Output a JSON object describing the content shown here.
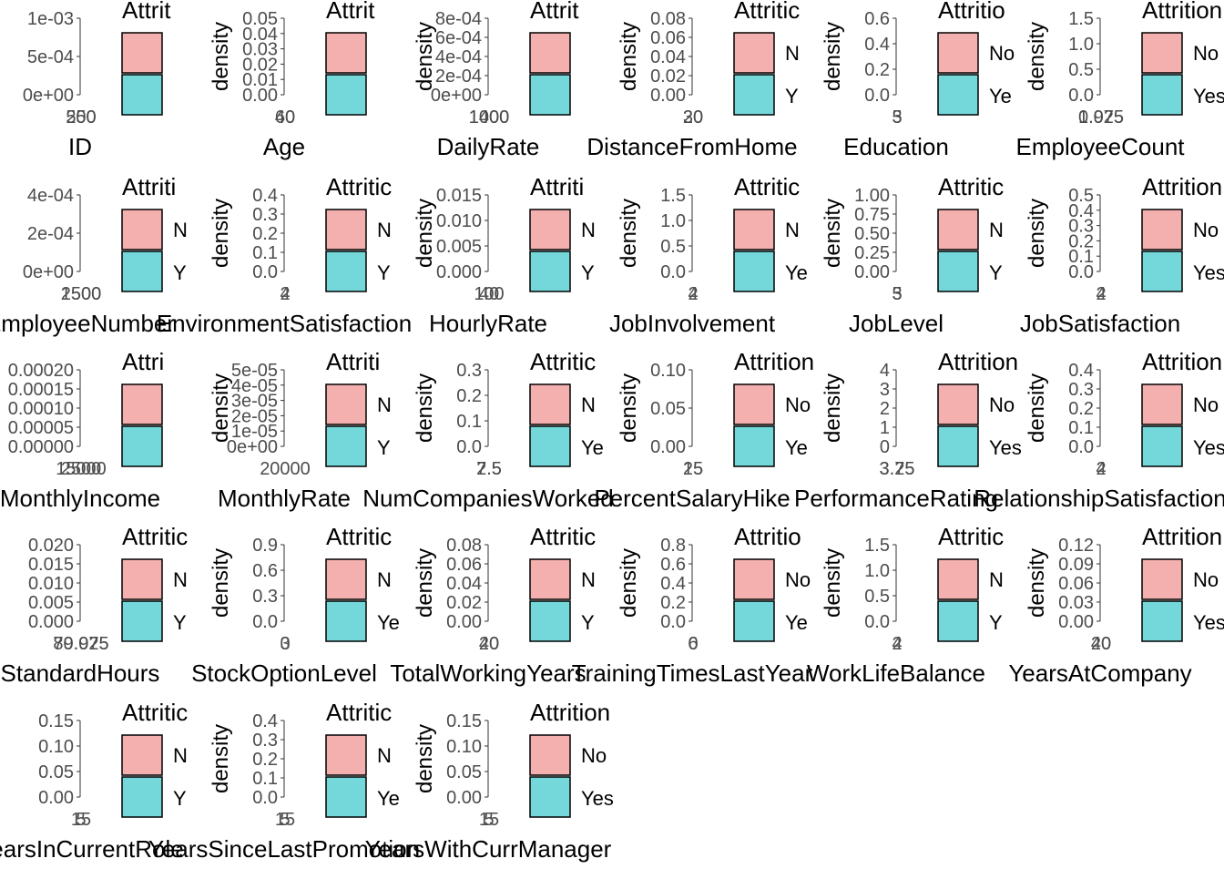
{
  "chart_data": {
    "type": "area",
    "legend": {
      "title": "Attrition",
      "entries": [
        "No",
        "Yes"
      ],
      "colors": [
        "#F4B0AF",
        "#74D8DB"
      ],
      "placement": "right-of-each-panel"
    },
    "ylabel": "density",
    "grid": false,
    "panels": [
      {
        "title": "ID",
        "show_ylabel": false,
        "y_ticks": [
          "1e-03",
          "5e-04",
          "0e+00"
        ],
        "x_tick": "500",
        "x_tick_over": "250",
        "legend_no": "",
        "legend_yes": "",
        "legend_title": "Attrit"
      },
      {
        "title": "Age",
        "show_ylabel": true,
        "y_ticks": [
          "0.05",
          "0.04",
          "0.03",
          "0.02",
          "0.01",
          "0.00"
        ],
        "x_tick": "60",
        "x_tick_over": "40",
        "legend_no": "",
        "legend_yes": "",
        "legend_title": "Attrit"
      },
      {
        "title": "DailyRate",
        "show_ylabel": true,
        "y_ticks": [
          "8e-04",
          "6e-04",
          "4e-04",
          "2e-04",
          "0e+00"
        ],
        "x_tick": "1000",
        "x_tick_over": "1400",
        "legend_no": "",
        "legend_yes": "",
        "legend_title": "Attrit"
      },
      {
        "title": "DistanceFromHome",
        "show_ylabel": true,
        "y_ticks": [
          "0.08",
          "0.06",
          "0.04",
          "0.02",
          "0.00"
        ],
        "x_tick": "20",
        "x_tick_over": "30",
        "legend_no": "N",
        "legend_yes": "Y",
        "legend_title": "Attritic"
      },
      {
        "title": "Education",
        "show_ylabel": true,
        "y_ticks": [
          "0.6",
          "0.4",
          "0.2",
          "0.0"
        ],
        "x_tick": "5",
        "x_tick_over": "3",
        "legend_no": "No",
        "legend_yes": "Ye",
        "legend_title": "Attritio"
      },
      {
        "title": "EmployeeCount",
        "show_ylabel": true,
        "y_ticks": [
          "1.5",
          "1.0",
          "0.5",
          "0.0"
        ],
        "x_tick": "1.025",
        "x_tick_over": "0.975",
        "legend_no": "No",
        "legend_yes": "Yes",
        "legend_title": "Attrition"
      },
      {
        "title": "EmployeeNumber",
        "show_ylabel": false,
        "y_ticks": [
          "4e-04",
          "2e-04",
          "0e+00"
        ],
        "x_tick": "2500",
        "x_tick_over": "1500",
        "legend_no": "N",
        "legend_yes": "Y",
        "legend_title": "Attriti"
      },
      {
        "title": "EnvironmentSatisfaction",
        "show_ylabel": true,
        "y_ticks": [
          "0.4",
          "0.3",
          "0.2",
          "0.1",
          "0.0"
        ],
        "x_tick": "4",
        "x_tick_over": "2",
        "legend_no": "N",
        "legend_yes": "Y",
        "legend_title": "Attritic"
      },
      {
        "title": "HourlyRate",
        "show_ylabel": true,
        "y_ticks": [
          "0.015",
          "0.010",
          "0.005",
          "0.000"
        ],
        "x_tick": "100",
        "x_tick_over": "40",
        "legend_no": "N",
        "legend_yes": "Y",
        "legend_title": "Attriti"
      },
      {
        "title": "JobInvolvement",
        "show_ylabel": true,
        "y_ticks": [
          "1.5",
          "1.0",
          "0.5",
          "0.0"
        ],
        "x_tick": "4",
        "x_tick_over": "2",
        "legend_no": "N",
        "legend_yes": "Ye",
        "legend_title": "Attritic"
      },
      {
        "title": "JobLevel",
        "show_ylabel": true,
        "y_ticks": [
          "1.00",
          "0.75",
          "0.50",
          "0.25",
          "0.00"
        ],
        "x_tick": "5",
        "x_tick_over": "3",
        "legend_no": "N",
        "legend_yes": "Y",
        "legend_title": "Attritic"
      },
      {
        "title": "JobSatisfaction",
        "show_ylabel": true,
        "y_ticks": [
          "0.5",
          "0.4",
          "0.3",
          "0.2",
          "0.1",
          "0.0"
        ],
        "x_tick": "4",
        "x_tick_over": "2",
        "legend_no": "No",
        "legend_yes": "Yes",
        "legend_title": "Attrition"
      },
      {
        "title": "MonthlyIncome",
        "show_ylabel": false,
        "y_ticks": [
          "0.00020",
          "0.00015",
          "0.00010",
          "0.00005",
          "0.00000"
        ],
        "x_tick": "15000",
        "x_tick_over": "2500",
        "legend_no": "",
        "legend_yes": "",
        "legend_title": "Attri"
      },
      {
        "title": "MonthlyRate",
        "show_ylabel": true,
        "y_ticks": [
          "5e-05",
          "4e-05",
          "3e-05",
          "2e-05",
          "1e-05",
          "0e+00"
        ],
        "x_tick": "20000",
        "x_tick_over": "",
        "legend_no": "N",
        "legend_yes": "Y",
        "legend_title": "Attriti"
      },
      {
        "title": "NumCompaniesWorked",
        "show_ylabel": true,
        "y_ticks": [
          "0.3",
          "0.2",
          "0.1",
          "0.0"
        ],
        "x_tick": "2.5",
        "x_tick_over": "7.5",
        "legend_no": "N",
        "legend_yes": "Ye",
        "legend_title": "Attritic"
      },
      {
        "title": "PercentSalaryHike",
        "show_ylabel": true,
        "y_ticks": [
          "0.10",
          "0.05",
          "0.00"
        ],
        "x_tick": "25",
        "x_tick_over": "15",
        "legend_no": "No",
        "legend_yes": "Ye",
        "legend_title": "Attrition"
      },
      {
        "title": "PerformanceRating",
        "show_ylabel": true,
        "y_ticks": [
          "4",
          "3",
          "2",
          "1",
          "0"
        ],
        "x_tick": "3.75",
        "x_tick_over": "3.25",
        "legend_no": "No",
        "legend_yes": "Yes",
        "legend_title": "Attrition"
      },
      {
        "title": "RelationshipSatisfaction",
        "show_ylabel": true,
        "y_ticks": [
          "0.4",
          "0.3",
          "0.2",
          "0.1",
          "0.0"
        ],
        "x_tick": "4",
        "x_tick_over": "2",
        "legend_no": "No",
        "legend_yes": "Yes",
        "legend_title": "Attrition"
      },
      {
        "title": "StandardHours",
        "show_ylabel": false,
        "y_ticks": [
          "0.020",
          "0.015",
          "0.010",
          "0.005",
          "0.000"
        ],
        "x_tick": "80.025",
        "x_tick_over": "79.975",
        "legend_no": "N",
        "legend_yes": "Y",
        "legend_title": "Attritic"
      },
      {
        "title": "StockOptionLevel",
        "show_ylabel": true,
        "y_ticks": [
          "0.9",
          "0.6",
          "0.3",
          "0.0"
        ],
        "x_tick": "3",
        "x_tick_over": "0",
        "legend_no": "N",
        "legend_yes": "Ye",
        "legend_title": "Attritic"
      },
      {
        "title": "TotalWorkingYears",
        "show_ylabel": true,
        "y_ticks": [
          "0.08",
          "0.06",
          "0.04",
          "0.02",
          "0.00"
        ],
        "x_tick": "40",
        "x_tick_over": "20",
        "legend_no": "N",
        "legend_yes": "Y",
        "legend_title": "Attritic"
      },
      {
        "title": "TrainingTimesLastYear",
        "show_ylabel": true,
        "y_ticks": [
          "0.8",
          "0.6",
          "0.4",
          "0.2",
          "0.0"
        ],
        "x_tick": "6",
        "x_tick_over": "0",
        "legend_no": "No",
        "legend_yes": "Ye",
        "legend_title": "Attritio"
      },
      {
        "title": "WorkLifeBalance",
        "show_ylabel": true,
        "y_ticks": [
          "1.5",
          "1.0",
          "0.5",
          "0.0"
        ],
        "x_tick": "4",
        "x_tick_over": "2",
        "legend_no": "N",
        "legend_yes": "Y",
        "legend_title": "Attritic"
      },
      {
        "title": "YearsAtCompany",
        "show_ylabel": true,
        "y_ticks": [
          "0.12",
          "0.09",
          "0.06",
          "0.03",
          "0.00"
        ],
        "x_tick": "40",
        "x_tick_over": "20",
        "legend_no": "No",
        "legend_yes": "Yes",
        "legend_title": "Attrition"
      },
      {
        "title": "YearsInCurrentRole",
        "show_ylabel": false,
        "y_ticks": [
          "0.15",
          "0.10",
          "0.05",
          "0.00"
        ],
        "x_tick": "15",
        "x_tick_over": "5",
        "legend_no": "N",
        "legend_yes": "Y",
        "legend_title": "Attritic"
      },
      {
        "title": "YearsSinceLastPromotion",
        "show_ylabel": true,
        "y_ticks": [
          "0.4",
          "0.3",
          "0.2",
          "0.1",
          "0.0"
        ],
        "x_tick": "15",
        "x_tick_over": "5",
        "legend_no": "N",
        "legend_yes": "Ye",
        "legend_title": "Attritic"
      },
      {
        "title": "YearsWithCurrManager",
        "show_ylabel": true,
        "y_ticks": [
          "0.15",
          "0.10",
          "0.05",
          "0.00"
        ],
        "x_tick": "15",
        "x_tick_over": "5",
        "legend_no": "No",
        "legend_yes": "Yes",
        "legend_title": "Attrition"
      }
    ]
  }
}
